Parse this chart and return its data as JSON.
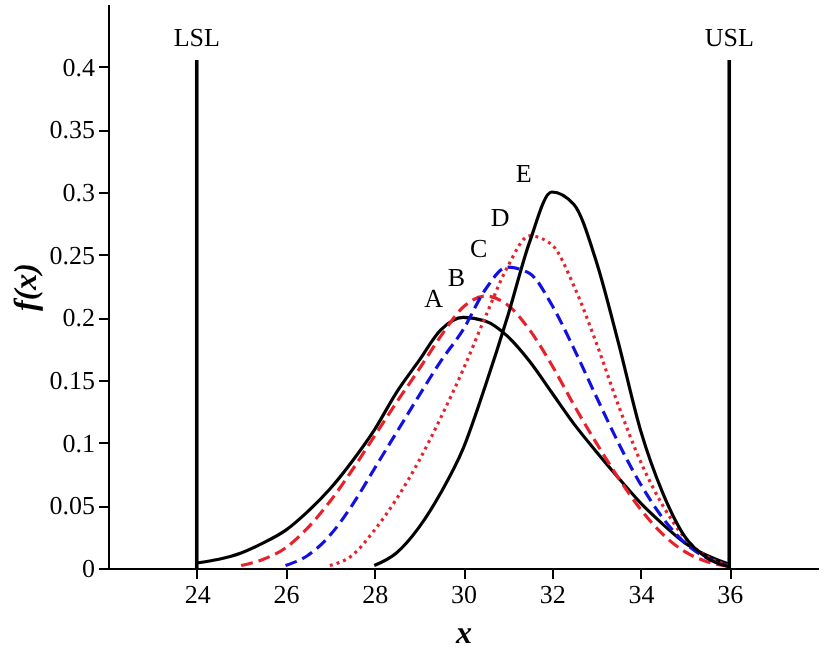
{
  "chart_data": {
    "type": "line",
    "xlabel": "x",
    "ylabel": "f(x)",
    "xlim": [
      22,
      38
    ],
    "ylim": [
      0,
      0.45
    ],
    "xticks": [
      24,
      26,
      28,
      30,
      32,
      34,
      36
    ],
    "yticks": [
      0,
      0.05,
      0.1,
      0.15,
      0.2,
      0.25,
      0.3,
      0.35,
      0.4
    ],
    "grid": false,
    "marker": "none",
    "series": [
      {
        "name": "A",
        "color": "#000000",
        "line_style": "solid",
        "x": [
          24,
          24.5,
          25,
          25.5,
          26,
          26.5,
          27,
          27.5,
          28,
          28.5,
          29,
          29.5,
          30,
          30.5,
          31,
          31.5,
          32,
          32.5,
          33,
          33.5,
          34,
          34.5,
          35,
          35.5,
          36
        ],
        "values": [
          0.004,
          0.007,
          0.012,
          0.02,
          0.03,
          0.045,
          0.063,
          0.085,
          0.11,
          0.14,
          0.165,
          0.19,
          0.2,
          0.197,
          0.185,
          0.165,
          0.14,
          0.115,
          0.093,
          0.072,
          0.052,
          0.035,
          0.02,
          0.01,
          0.003
        ]
      },
      {
        "name": "B",
        "color": "#e8202a",
        "line_style": "dashed",
        "x": [
          25,
          25.5,
          26,
          26.5,
          27,
          27.5,
          28,
          28.5,
          29,
          29.5,
          30,
          30.5,
          31,
          31.5,
          32,
          32.5,
          33,
          33.5,
          34,
          34.5,
          35,
          35.5,
          36
        ],
        "values": [
          0.002,
          0.007,
          0.016,
          0.032,
          0.053,
          0.078,
          0.105,
          0.132,
          0.158,
          0.185,
          0.208,
          0.217,
          0.21,
          0.19,
          0.162,
          0.13,
          0.1,
          0.072,
          0.047,
          0.027,
          0.013,
          0.005,
          0.001
        ]
      },
      {
        "name": "C",
        "color": "#1010e0",
        "line_style": "dashed",
        "x": [
          26,
          26.5,
          27,
          27.5,
          28,
          28.5,
          29,
          29.5,
          30,
          30.5,
          31,
          31.5,
          32,
          32.5,
          33,
          33.5,
          34,
          34.5,
          35,
          35.5,
          36
        ],
        "values": [
          0.002,
          0.01,
          0.026,
          0.05,
          0.079,
          0.108,
          0.137,
          0.165,
          0.19,
          0.222,
          0.24,
          0.235,
          0.21,
          0.175,
          0.137,
          0.1,
          0.067,
          0.04,
          0.02,
          0.008,
          0.002
        ]
      },
      {
        "name": "D",
        "color": "#e8202a",
        "line_style": "dotted",
        "x": [
          27,
          27.5,
          28,
          28.5,
          29,
          29.5,
          30,
          30.5,
          31,
          31.5,
          32,
          32.5,
          33,
          33.5,
          34,
          34.5,
          35,
          35.5,
          36
        ],
        "values": [
          0.002,
          0.01,
          0.03,
          0.055,
          0.085,
          0.12,
          0.158,
          0.2,
          0.24,
          0.265,
          0.258,
          0.225,
          0.18,
          0.13,
          0.085,
          0.05,
          0.024,
          0.009,
          0.002
        ]
      },
      {
        "name": "E",
        "color": "#000000",
        "line_style": "solid",
        "x": [
          28,
          28.5,
          29,
          29.5,
          30,
          30.5,
          31,
          31.5,
          32,
          32.5,
          33,
          33.5,
          34,
          34.5,
          35,
          35.5,
          36
        ],
        "values": [
          0.002,
          0.012,
          0.032,
          0.06,
          0.095,
          0.145,
          0.2,
          0.26,
          0.3,
          0.29,
          0.245,
          0.18,
          0.11,
          0.06,
          0.025,
          0.008,
          0.001
        ]
      }
    ],
    "ref_lines": [
      {
        "axis": "x",
        "value": 24,
        "label": "LSL",
        "color": "#000000"
      },
      {
        "axis": "x",
        "value": 36,
        "label": "USL",
        "color": "#000000"
      }
    ]
  }
}
